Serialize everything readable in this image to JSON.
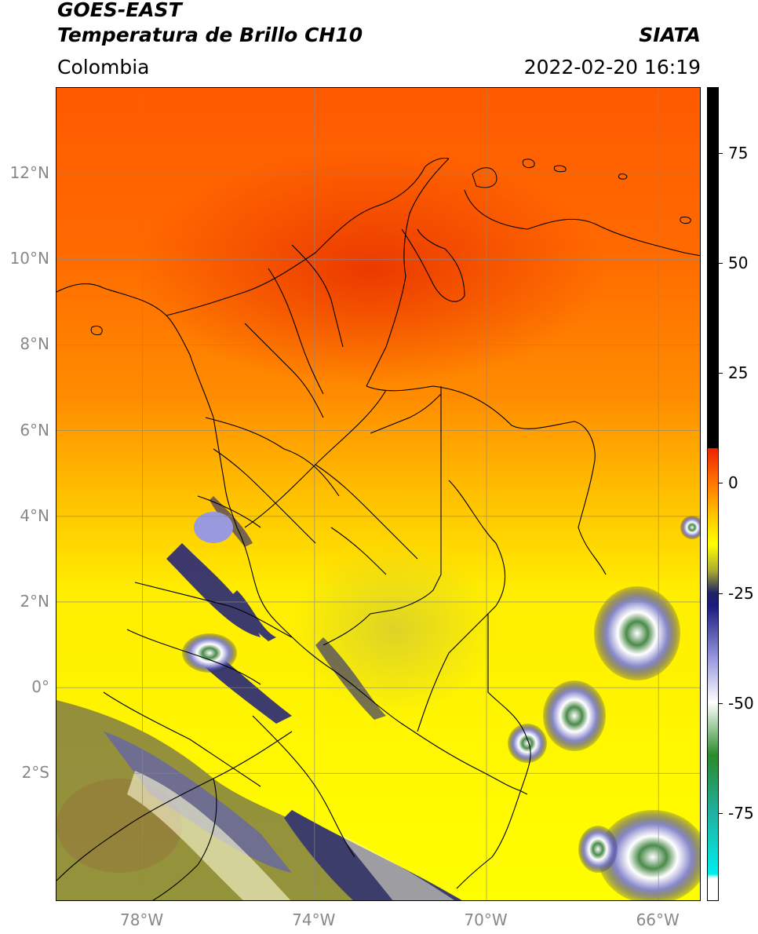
{
  "header": {
    "satellite": "GOES-EAST",
    "product": "Temperatura de Brillo CH10",
    "org": "SIATA",
    "region": "Colombia",
    "datetime": "2022-02-20 16:19"
  },
  "map": {
    "extent": {
      "lon_min": -80.0,
      "lon_max": -65.0,
      "lat_min": -5.0,
      "lat_max": 14.0
    },
    "lat_ticks": [
      {
        "value": 12,
        "label": "12°N"
      },
      {
        "value": 10,
        "label": "10°N"
      },
      {
        "value": 8,
        "label": "8°N"
      },
      {
        "value": 6,
        "label": "6°N"
      },
      {
        "value": 4,
        "label": "4°N"
      },
      {
        "value": 2,
        "label": "2°N"
      },
      {
        "value": 0,
        "label": "0°"
      },
      {
        "value": -2,
        "label": "2°S"
      }
    ],
    "lon_ticks": [
      {
        "value": -78,
        "label": "78°W"
      },
      {
        "value": -74,
        "label": "74°W"
      },
      {
        "value": -70,
        "label": "70°W"
      },
      {
        "value": -66,
        "label": "66°W"
      }
    ],
    "gridlines": true,
    "colors": {
      "warm": "#ff6600",
      "hot": "#ee3300",
      "yellow": "#ffee00",
      "cold": "#1a1a80",
      "grid": "#888888",
      "border": "#000000"
    }
  },
  "colorbar": {
    "min": -95,
    "max": 90,
    "ticks": [
      {
        "value": 75,
        "label": "75"
      },
      {
        "value": 50,
        "label": "50"
      },
      {
        "value": 25,
        "label": "25"
      },
      {
        "value": 0,
        "label": "0"
      },
      {
        "value": -25,
        "label": "-25"
      },
      {
        "value": -50,
        "label": "-50"
      },
      {
        "value": -75,
        "label": "-75"
      }
    ],
    "stops": [
      {
        "value": 90,
        "color": "#000000"
      },
      {
        "value": 8,
        "color": "#000000"
      },
      {
        "value": 7.9,
        "color": "#ee2200"
      },
      {
        "value": 0,
        "color": "#ff7700"
      },
      {
        "value": -8,
        "color": "#ffcc00"
      },
      {
        "value": -14,
        "color": "#ffff00"
      },
      {
        "value": -20,
        "color": "#aaaa33"
      },
      {
        "value": -25,
        "color": "#222266"
      },
      {
        "value": -28,
        "color": "#1a1a80"
      },
      {
        "value": -40,
        "color": "#9999dd"
      },
      {
        "value": -50,
        "color": "#ffffff"
      },
      {
        "value": -62,
        "color": "#2a8a2a"
      },
      {
        "value": -75,
        "color": "#20b0a0"
      },
      {
        "value": -89,
        "color": "#00eeee"
      },
      {
        "value": -90,
        "color": "#ffffff"
      },
      {
        "value": -95,
        "color": "#ffffff"
      }
    ]
  }
}
